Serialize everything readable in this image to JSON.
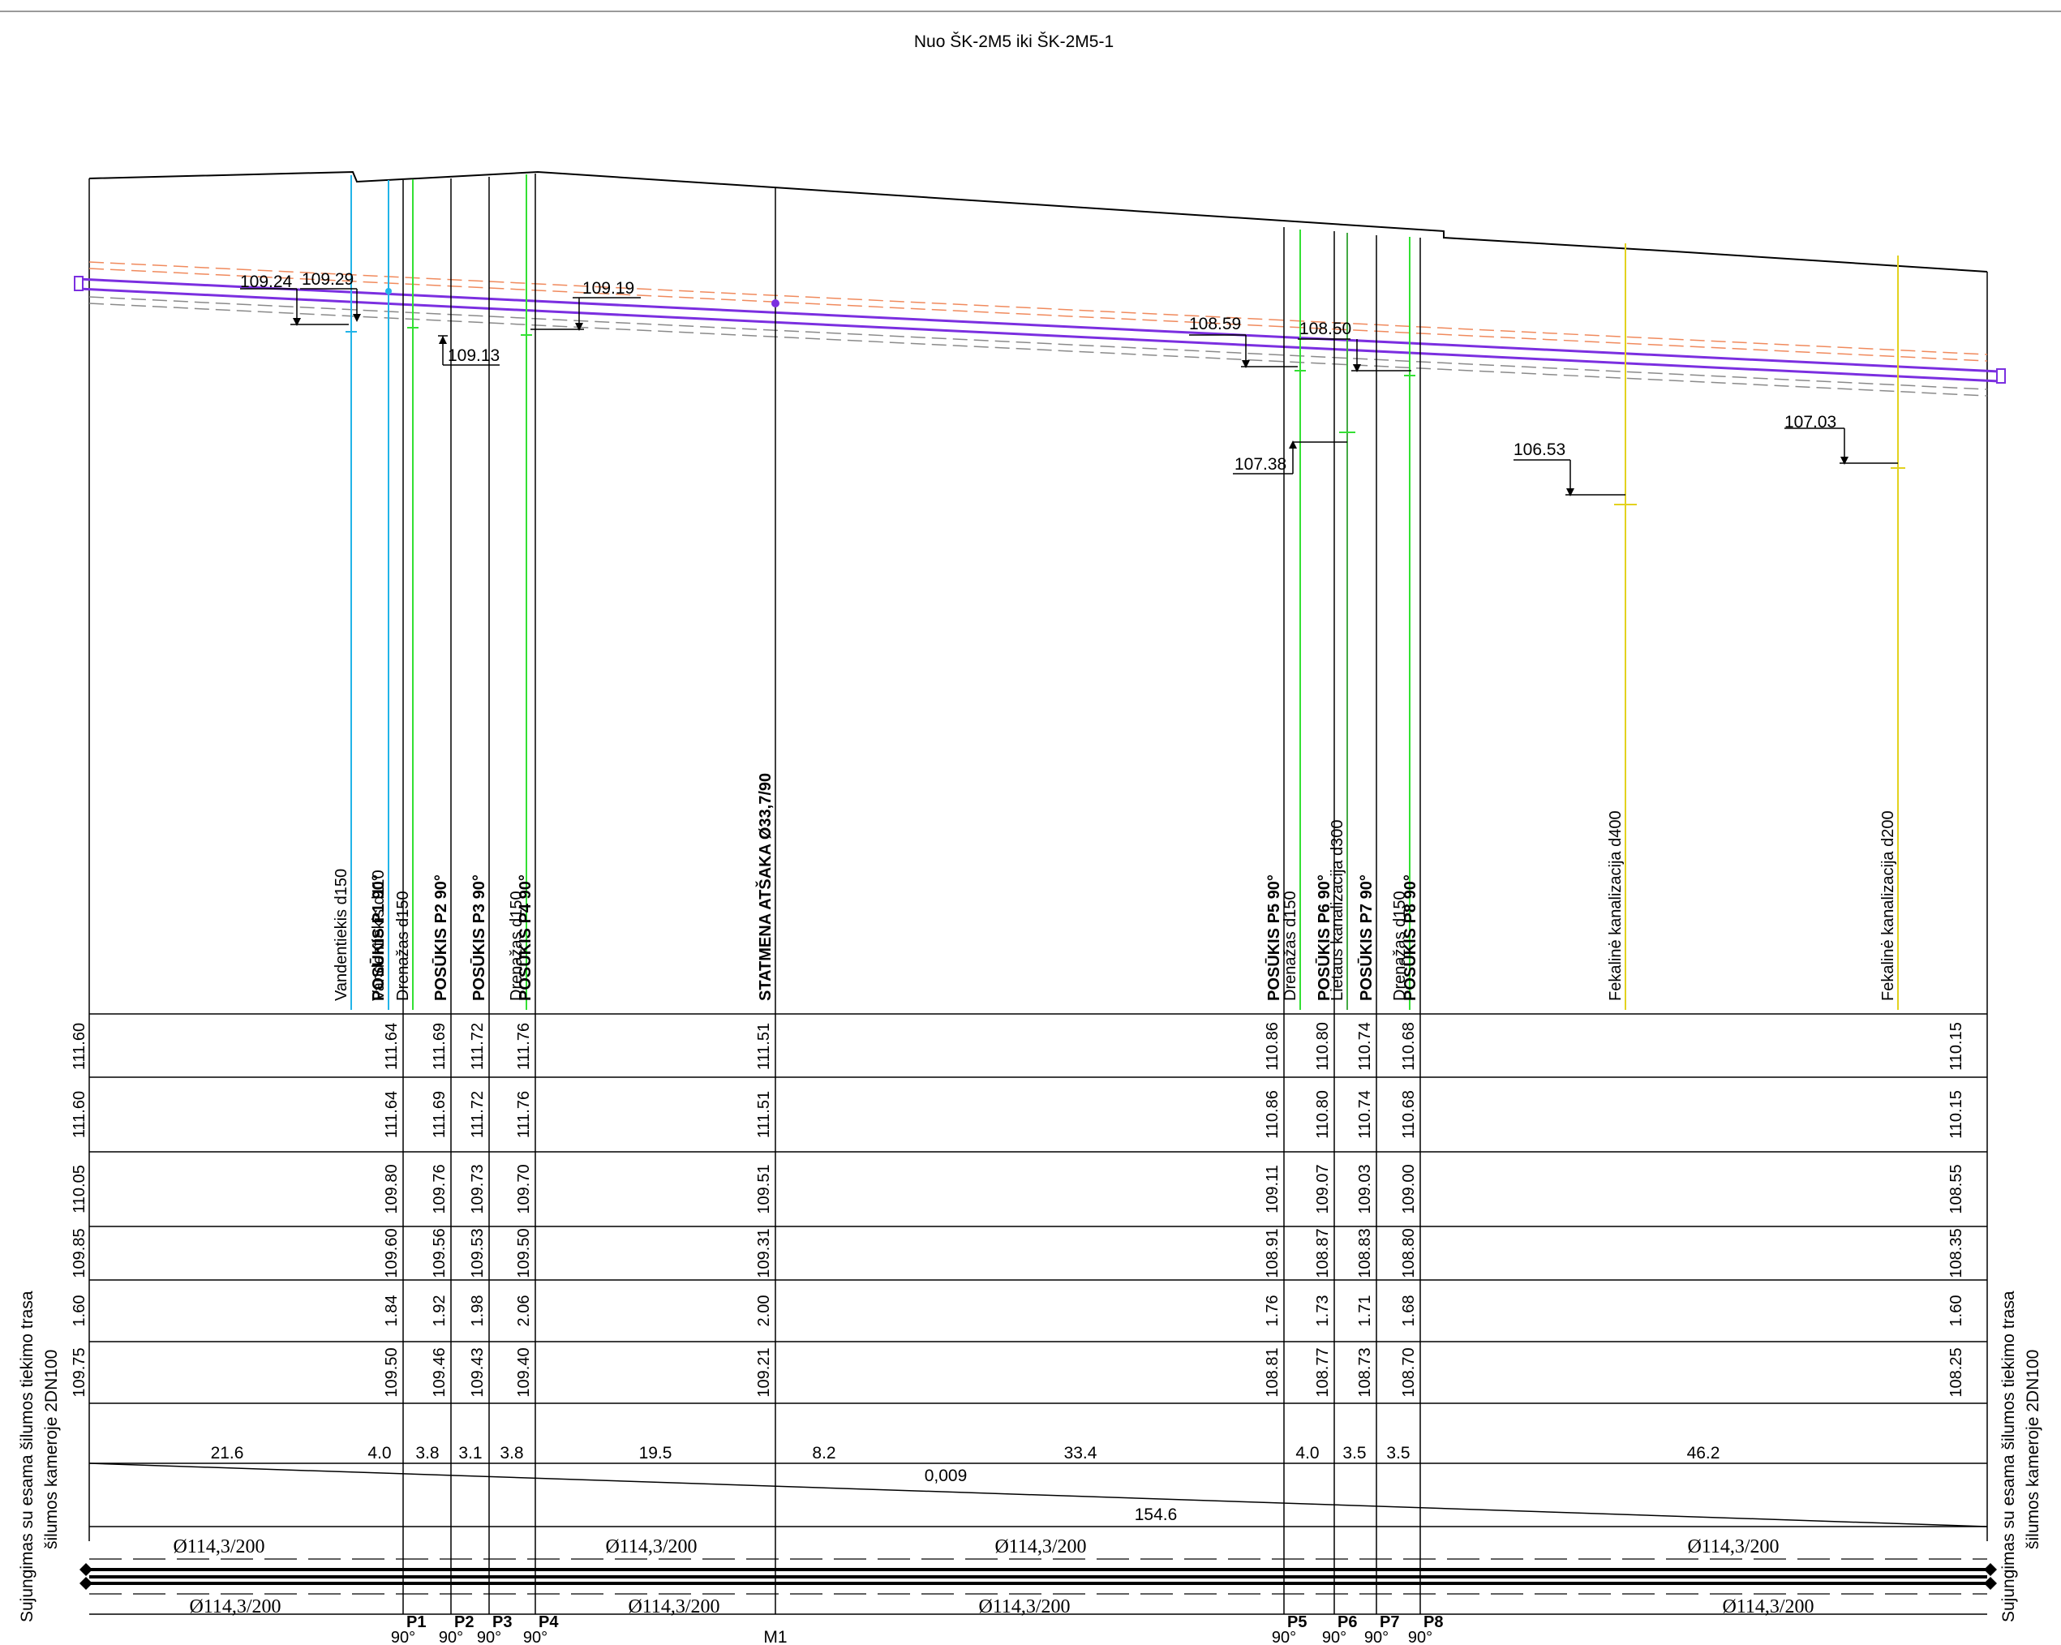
{
  "title": "Nuo ŠK-2M5 iki ŠK-2M5-1",
  "side_labels": {
    "left": [
      "Sujungimas su esama šilumos tiekimo trasa",
      "šilumos kameroje 2DN100"
    ],
    "right": [
      "Sujungimas su esama šilumos tiekimo trasa",
      "šilumos kameroje 2DN100"
    ]
  },
  "level_callouts": [
    "109.24",
    "109.29",
    "109.19",
    "109.13",
    "108.59",
    "108.50",
    "107.38",
    "106.53",
    "107.03"
  ],
  "vertical_labels": [
    {
      "text": "Vandentiekis d150",
      "bold": false
    },
    {
      "text": "Vandentiekis d110",
      "bold": false
    },
    {
      "text": "POSŪKIS P1  90°",
      "bold": true
    },
    {
      "text": "Drenažas d150",
      "bold": false
    },
    {
      "text": "POSŪKIS P2  90°",
      "bold": true
    },
    {
      "text": "POSŪKIS P3  90°",
      "bold": true
    },
    {
      "text": "Drenažas d150",
      "bold": false
    },
    {
      "text": "POSŪKIS P4  90°",
      "bold": true
    },
    {
      "text": "STATMENA ATŠAKA Ø33,7/90",
      "bold": true
    },
    {
      "text": "POSŪKIS P5  90°",
      "bold": true
    },
    {
      "text": "Drenažas d150",
      "bold": false
    },
    {
      "text": "POSŪKIS P6  90°",
      "bold": true
    },
    {
      "text": "Lietaus kanalizacija d300",
      "bold": false
    },
    {
      "text": "POSŪKIS P7  90°",
      "bold": true
    },
    {
      "text": "Drenažas d150",
      "bold": false
    },
    {
      "text": "POSŪKIS P8  90°",
      "bold": true
    },
    {
      "text": "Fekalinė kanalizacija d400",
      "bold": false
    },
    {
      "text": "Fekalinė kanalizacija d200",
      "bold": false
    }
  ],
  "table_rows": [
    [
      "111.60",
      "111.64",
      "111.69",
      "111.72",
      "111.76",
      "111.51",
      "110.86",
      "110.80",
      "110.74",
      "110.68",
      "110.15"
    ],
    [
      "111.60",
      "111.64",
      "111.69",
      "111.72",
      "111.76",
      "111.51",
      "110.86",
      "110.80",
      "110.74",
      "110.68",
      "110.15"
    ],
    [
      "110.05",
      "109.80",
      "109.76",
      "109.73",
      "109.70",
      "109.51",
      "109.11",
      "109.07",
      "109.03",
      "109.00",
      "108.55"
    ],
    [
      "109.85",
      "109.60",
      "109.56",
      "109.53",
      "109.50",
      "109.31",
      "108.91",
      "108.87",
      "108.83",
      "108.80",
      "108.35"
    ],
    [
      "1.60",
      "1.84",
      "1.92",
      "1.98",
      "2.06",
      "2.00",
      "1.76",
      "1.73",
      "1.71",
      "1.68",
      "1.60"
    ],
    [
      "109.75",
      "109.50",
      "109.46",
      "109.43",
      "109.40",
      "109.21",
      "108.81",
      "108.77",
      "108.73",
      "108.70",
      "108.25"
    ]
  ],
  "distances": [
    "21.6",
    "4.0",
    "3.8",
    "3.1",
    "3.8",
    "19.5",
    "8.2",
    "33.4",
    "4.0",
    "3.5",
    "3.5",
    "46.2"
  ],
  "slope": "0,009",
  "total_length": "154.6",
  "pipe_labels_top": [
    "Ø114,3/200",
    "Ø114,3/200",
    "Ø114,3/200",
    "Ø114,3/200"
  ],
  "pipe_labels_bottom": [
    "Ø114,3/200",
    "Ø114,3/200",
    "Ø114,3/200",
    "Ø114,3/200"
  ],
  "bend_labels": [
    "P1",
    "P2",
    "P3",
    "P4",
    "P5",
    "P6",
    "P7",
    "P8"
  ],
  "bend_angle": "90°",
  "branch_label": "M1",
  "colors": {
    "pipe": "#7b2fe0",
    "water": "#22b4e8",
    "drain": "#33e033",
    "sewer": "#e3d21f",
    "dashed_top": "#f08a5d",
    "dashed_bottom": "#8a8a8a",
    "line": "#000000",
    "rain_sewer": "#44aa44"
  }
}
